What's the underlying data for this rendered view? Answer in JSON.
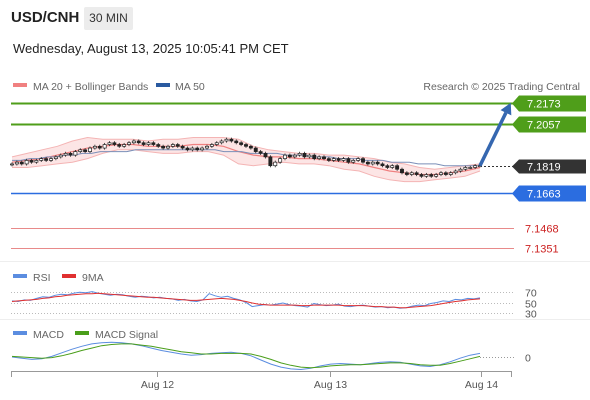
{
  "header": {
    "pair": "USD/CNH",
    "timeframe": "30 MIN"
  },
  "datetime": "Wednesday, August 13, 2025 10:05:41 PM CET",
  "legend": {
    "ma20_bb": "MA 20 + Bollinger Bands",
    "ma50": "MA 50",
    "copyright": "Research © 2025 Trading Central",
    "rsi": "RSI",
    "rsi_ma": "9MA",
    "macd": "MACD",
    "macd_signal": "MACD Signal"
  },
  "colors": {
    "resistance": "#4f9e1a",
    "support": "#2b6de0",
    "weak_support": "#e88a8a",
    "weak_support_text": "#cc2222",
    "current": "#333333",
    "ma20": "#f08080",
    "ma50": "#2a5aa0",
    "arrow": "#3567b0",
    "rsi": "#5b8de0",
    "rsi_ma": "#e03030",
    "macd": "#5b8de0",
    "macd_signal": "#4a9e1a"
  },
  "chart_data": [
    {
      "type": "candlestick",
      "ylim": [
        7.128,
        7.2215
      ],
      "x_ticks": [
        "Aug 12",
        "Aug 13",
        "Aug 14"
      ],
      "levels": [
        {
          "label": "7.2173",
          "value": 7.2173,
          "kind": "resistance"
        },
        {
          "label": "7.2057",
          "value": 7.2057,
          "kind": "resistance"
        },
        {
          "label": "7.1819",
          "value": 7.1819,
          "kind": "current"
        },
        {
          "label": "7.1663",
          "value": 7.1663,
          "kind": "support"
        },
        {
          "label": "7.1468",
          "value": 7.1468,
          "kind": "weak_support"
        },
        {
          "label": "7.1351",
          "value": 7.1351,
          "kind": "weak_support"
        }
      ],
      "close": [
        7.183,
        7.184,
        7.183,
        7.185,
        7.184,
        7.185,
        7.186,
        7.185,
        7.186,
        7.187,
        7.188,
        7.189,
        7.188,
        7.19,
        7.191,
        7.19,
        7.192,
        7.193,
        7.192,
        7.194,
        7.195,
        7.194,
        7.193,
        7.194,
        7.195,
        7.196,
        7.195,
        7.194,
        7.195,
        7.194,
        7.193,
        7.192,
        7.193,
        7.194,
        7.193,
        7.192,
        7.191,
        7.192,
        7.191,
        7.192,
        7.193,
        7.194,
        7.195,
        7.196,
        7.197,
        7.196,
        7.195,
        7.194,
        7.193,
        7.192,
        7.19,
        7.189,
        7.187,
        7.182,
        7.184,
        7.186,
        7.188,
        7.187,
        7.188,
        7.189,
        7.187,
        7.188,
        7.186,
        7.187,
        7.186,
        7.185,
        7.186,
        7.185,
        7.186,
        7.184,
        7.185,
        7.186,
        7.184,
        7.183,
        7.184,
        7.183,
        7.182,
        7.181,
        7.182,
        7.18,
        7.178,
        7.177,
        7.178,
        7.177,
        7.176,
        7.177,
        7.176,
        7.177,
        7.178,
        7.177,
        7.178,
        7.179,
        7.18,
        7.181,
        7.181,
        7.182,
        7.182
      ],
      "ma50": [
        7.185,
        7.185,
        7.186,
        7.186,
        7.187,
        7.187,
        7.188,
        7.188,
        7.189,
        7.189,
        7.19,
        7.19,
        7.19,
        7.19,
        7.191,
        7.191,
        7.191,
        7.191,
        7.191,
        7.191,
        7.191,
        7.191,
        7.191,
        7.191,
        7.19,
        7.19,
        7.19,
        7.189,
        7.189,
        7.189,
        7.189,
        7.188,
        7.188,
        7.188,
        7.187,
        7.187,
        7.187,
        7.186,
        7.186,
        7.186,
        7.185,
        7.185,
        7.185,
        7.184,
        7.184,
        7.184,
        7.183,
        7.183,
        7.183,
        7.182,
        7.182,
        7.182,
        7.182,
        7.182
      ],
      "ma20": [
        7.184,
        7.185,
        7.186,
        7.188,
        7.19,
        7.192,
        7.193,
        7.194,
        7.194,
        7.193,
        7.193,
        7.193,
        7.194,
        7.194,
        7.193,
        7.19,
        7.188,
        7.187,
        7.187,
        7.186,
        7.186,
        7.185,
        7.184,
        7.183,
        7.181,
        7.179,
        7.178,
        7.177,
        7.177,
        7.178,
        7.179,
        7.181
      ],
      "bb_upper": [
        7.187,
        7.189,
        7.191,
        7.193,
        7.196,
        7.198,
        7.197,
        7.197,
        7.197,
        7.196,
        7.197,
        7.197,
        7.198,
        7.198,
        7.198,
        7.197,
        7.193,
        7.191,
        7.19,
        7.189,
        7.189,
        7.188,
        7.188,
        7.187,
        7.186,
        7.184,
        7.183,
        7.181,
        7.18,
        7.181,
        7.182,
        7.183
      ],
      "bb_lower": [
        7.181,
        7.181,
        7.182,
        7.183,
        7.184,
        7.186,
        7.189,
        7.191,
        7.191,
        7.19,
        7.189,
        7.189,
        7.19,
        7.19,
        7.188,
        7.183,
        7.182,
        7.183,
        7.184,
        7.183,
        7.183,
        7.182,
        7.18,
        7.179,
        7.176,
        7.174,
        7.173,
        7.173,
        7.174,
        7.175,
        7.176,
        7.179
      ],
      "projection_target": 7.2173
    },
    {
      "type": "line",
      "name": "RSI",
      "y_ticks": [
        70,
        50,
        30
      ],
      "ylim": [
        20,
        80
      ],
      "series": [
        {
          "name": "RSI",
          "values": [
            53,
            52,
            55,
            54,
            58,
            61,
            60,
            64,
            66,
            65,
            68,
            70,
            69,
            71,
            68,
            66,
            64,
            66,
            65,
            62,
            60,
            62,
            61,
            59,
            60,
            58,
            57,
            54,
            56,
            53,
            52,
            55,
            67,
            63,
            60,
            62,
            58,
            55,
            50,
            42,
            44,
            46,
            45,
            47,
            49,
            46,
            44,
            43,
            41,
            48,
            46,
            44,
            45,
            47,
            43,
            42,
            44,
            45,
            43,
            41,
            42,
            40,
            41,
            39,
            40,
            43,
            45,
            44,
            48,
            50,
            53,
            52,
            56,
            55,
            58,
            57,
            59
          ]
        },
        {
          "name": "9MA",
          "values": [
            52,
            53,
            54,
            55,
            56,
            58,
            59,
            61,
            62,
            64,
            65,
            66,
            67,
            67,
            68,
            67,
            66,
            65,
            64,
            63,
            62,
            61,
            60,
            60,
            59,
            58,
            57,
            56,
            55,
            54,
            54,
            55,
            56,
            57,
            58,
            57,
            56,
            54,
            52,
            49,
            47,
            46,
            45,
            45,
            45,
            45,
            45,
            44,
            44,
            45,
            45,
            45,
            45,
            45,
            44,
            44,
            44,
            44,
            43,
            42,
            42,
            41,
            41,
            40,
            40,
            41,
            42,
            43,
            44,
            46,
            48,
            50,
            52,
            53,
            55,
            56,
            57
          ]
        }
      ]
    },
    {
      "type": "line",
      "name": "MACD",
      "y_ticks": [
        0
      ],
      "ylim": [
        -0.0032,
        0.0032
      ],
      "series": [
        {
          "name": "MACD",
          "values": [
            0,
            -0.0002,
            -0.0004,
            -0.0003,
            0.0001,
            0.0007,
            0.0013,
            0.0018,
            0.0022,
            0.0024,
            0.0025,
            0.0024,
            0.0022,
            0.0019,
            0.0015,
            0.0011,
            0.0008,
            0.0005,
            0.0003,
            0.0004,
            0.0006,
            0.0007,
            0.0008,
            0.0006,
            0.0002,
            -0.0005,
            -0.0012,
            -0.0017,
            -0.002,
            -0.0021,
            -0.0019,
            -0.0015,
            -0.0012,
            -0.0011,
            -0.0012,
            -0.0013,
            -0.0011,
            -0.0009,
            -0.0008,
            -0.0009,
            -0.0012,
            -0.0015,
            -0.0016,
            -0.0013,
            -0.0008,
            -0.0002,
            0.0003,
            0.0006
          ]
        },
        {
          "name": "MACD Signal",
          "values": [
            0.0001,
            0,
            -0.0001,
            -0.0002,
            -0.0001,
            0.0002,
            0.0006,
            0.0011,
            0.0015,
            0.0019,
            0.0021,
            0.0022,
            0.0022,
            0.002,
            0.0018,
            0.0015,
            0.0012,
            0.0009,
            0.0007,
            0.0005,
            0.0005,
            0.0006,
            0.0006,
            0.0006,
            0.0005,
            0.0001,
            -0.0004,
            -0.001,
            -0.0014,
            -0.0017,
            -0.0018,
            -0.0017,
            -0.0015,
            -0.0014,
            -0.0013,
            -0.0013,
            -0.0012,
            -0.0011,
            -0.001,
            -0.001,
            -0.0011,
            -0.0013,
            -0.0014,
            -0.0014,
            -0.0011,
            -0.0007,
            -0.0003,
            0.0001
          ]
        }
      ]
    }
  ]
}
